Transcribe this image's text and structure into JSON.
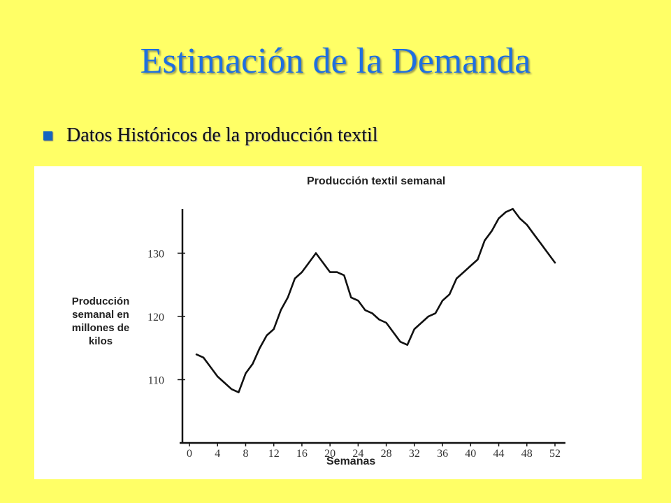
{
  "slide": {
    "title": "Estimación de la Demanda",
    "bullet": "Datos Históricos de la producción textil"
  },
  "colors": {
    "background": "#FFFF66",
    "title": "#1E6FE0",
    "bullet": "#1565C0",
    "line": "#111111"
  },
  "chart_data": {
    "type": "line",
    "title": "Producción textil semanal",
    "xlabel": "Semanas",
    "ylabel": "Producción semanal en millones de kilos",
    "xlim": [
      0,
      52
    ],
    "ylim": [
      100,
      138
    ],
    "xticks": [
      0,
      4,
      8,
      12,
      16,
      20,
      24,
      28,
      32,
      36,
      40,
      44,
      48,
      52
    ],
    "yticks": [
      110,
      120,
      130
    ],
    "grid": false,
    "series": [
      {
        "x": [
          1,
          2,
          3,
          4,
          5,
          6,
          7,
          8,
          9,
          10,
          11,
          12,
          13,
          14,
          15,
          16,
          17,
          18,
          19,
          20,
          21,
          22,
          23,
          24,
          25,
          26,
          27,
          28,
          29,
          30,
          31,
          32,
          33,
          34,
          35,
          36,
          37,
          38,
          39,
          40,
          41,
          42,
          43,
          44,
          45,
          46,
          47,
          48,
          49,
          50,
          51,
          52
        ],
        "y": [
          114,
          113.5,
          112,
          110.5,
          109.5,
          108.5,
          108,
          111,
          112.5,
          115,
          117,
          118,
          121,
          123,
          126,
          127,
          128.5,
          130,
          128.5,
          127,
          127,
          126.5,
          123,
          122.5,
          121,
          120.5,
          119.5,
          119,
          117.5,
          116,
          115.5,
          118,
          119,
          120,
          120.5,
          122.5,
          123.5,
          126,
          127,
          128,
          129,
          132,
          133.5,
          135.5,
          136.5,
          137,
          135.5,
          134.5,
          133,
          131.5,
          130,
          128.5
        ]
      }
    ]
  }
}
